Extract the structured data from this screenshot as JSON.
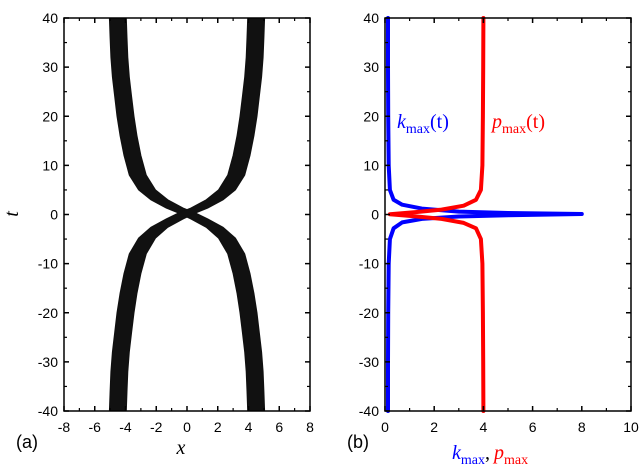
{
  "chart_data": [
    {
      "type": "scatter",
      "panel_label": "(a)",
      "xlabel": "x",
      "ylabel": "t",
      "xlim": [
        -8,
        8
      ],
      "ylim": [
        -40,
        40
      ],
      "xticks": [
        "-8",
        "-6",
        "-4",
        "-2",
        "0",
        "2",
        "4",
        "6",
        "8"
      ],
      "yticks": [
        "-40",
        "-30",
        "-20",
        "-10",
        "0",
        "10",
        "20",
        "30",
        "40"
      ],
      "fill_color": "#111111",
      "series": [
        {
          "points_center": [
            [
              -4.5,
              40
            ],
            [
              -4.45,
              36
            ],
            [
              -4.4,
              32
            ],
            [
              -4.3,
              28
            ],
            [
              -4.15,
              24
            ],
            [
              -4.0,
              20
            ],
            [
              -3.8,
              16
            ],
            [
              -3.55,
              12
            ],
            [
              -3.2,
              8
            ],
            [
              -2.6,
              5
            ],
            [
              -1.8,
              3
            ],
            [
              -0.8,
              1.3
            ],
            [
              0,
              0.3
            ],
            [
              0.8,
              -0.9
            ],
            [
              1.8,
              -2.6
            ],
            [
              2.6,
              -4.8
            ],
            [
              3.2,
              -8
            ],
            [
              3.55,
              -12
            ],
            [
              3.8,
              -16
            ],
            [
              4.0,
              -20
            ],
            [
              4.15,
              -24
            ],
            [
              4.3,
              -28
            ],
            [
              4.4,
              -32
            ],
            [
              4.45,
              -36
            ],
            [
              4.5,
              -40
            ]
          ],
          "band_width": 1.1
        },
        {
          "points_center": [
            [
              4.5,
              40
            ],
            [
              4.45,
              36
            ],
            [
              4.4,
              32
            ],
            [
              4.3,
              28
            ],
            [
              4.15,
              24
            ],
            [
              4.0,
              20
            ],
            [
              3.8,
              16
            ],
            [
              3.55,
              12
            ],
            [
              3.2,
              8
            ],
            [
              2.6,
              5
            ],
            [
              1.8,
              3
            ],
            [
              0.8,
              1.3
            ],
            [
              0,
              0.3
            ],
            [
              -0.8,
              -0.9
            ],
            [
              -1.8,
              -2.6
            ],
            [
              -2.6,
              -4.8
            ],
            [
              -3.2,
              -8
            ],
            [
              -3.55,
              -12
            ],
            [
              -3.8,
              -16
            ],
            [
              -4.0,
              -20
            ],
            [
              -4.15,
              -24
            ],
            [
              -4.3,
              -28
            ],
            [
              -4.4,
              -32
            ],
            [
              -4.45,
              -36
            ],
            [
              -4.5,
              -40
            ]
          ],
          "band_width": 1.1
        }
      ]
    },
    {
      "type": "line",
      "panel_label": "(b)",
      "xlim": [
        0,
        10
      ],
      "ylim": [
        -40,
        40
      ],
      "xticks": [
        "0",
        "2",
        "4",
        "6",
        "8",
        "10"
      ],
      "yticks": [
        "-40",
        "-30",
        "-20",
        "-10",
        "0",
        "10",
        "20",
        "30",
        "40"
      ],
      "xlabel_parts": {
        "k": "k",
        "k_sub": "max",
        "sep": ",",
        "p": "p",
        "p_sub": "max"
      },
      "series": [
        {
          "label_main": "k",
          "label_sub": "max",
          "label_arg": "(t)",
          "color": "#0000ff",
          "points": [
            [
              0.12,
              40
            ],
            [
              0.12,
              30
            ],
            [
              0.13,
              20
            ],
            [
              0.15,
              10
            ],
            [
              0.2,
              5
            ],
            [
              0.35,
              3
            ],
            [
              0.7,
              2
            ],
            [
              1.5,
              1.2
            ],
            [
              3,
              0.6
            ],
            [
              5,
              0.3
            ],
            [
              8,
              0.1
            ],
            [
              5,
              -0.15
            ],
            [
              3,
              -0.4
            ],
            [
              1.5,
              -0.9
            ],
            [
              0.7,
              -1.6
            ],
            [
              0.35,
              -2.8
            ],
            [
              0.2,
              -5
            ],
            [
              0.15,
              -10
            ],
            [
              0.13,
              -20
            ],
            [
              0.12,
              -30
            ],
            [
              0.12,
              -40
            ]
          ]
        },
        {
          "label_main": "p",
          "label_sub": "max",
          "label_arg": "(t)",
          "color": "#ff0000",
          "points": [
            [
              4,
              40
            ],
            [
              3.99,
              30
            ],
            [
              3.98,
              20
            ],
            [
              3.96,
              10
            ],
            [
              3.9,
              5
            ],
            [
              3.7,
              3
            ],
            [
              3.2,
              1.8
            ],
            [
              2.3,
              1.0
            ],
            [
              1.3,
              0.5
            ],
            [
              0.2,
              0.05
            ],
            [
              1.3,
              -0.4
            ],
            [
              2.3,
              -0.9
            ],
            [
              3.2,
              -1.7
            ],
            [
              3.7,
              -2.8
            ],
            [
              3.9,
              -5
            ],
            [
              3.96,
              -10
            ],
            [
              3.98,
              -20
            ],
            [
              3.99,
              -30
            ],
            [
              4,
              -40
            ]
          ]
        }
      ]
    }
  ]
}
